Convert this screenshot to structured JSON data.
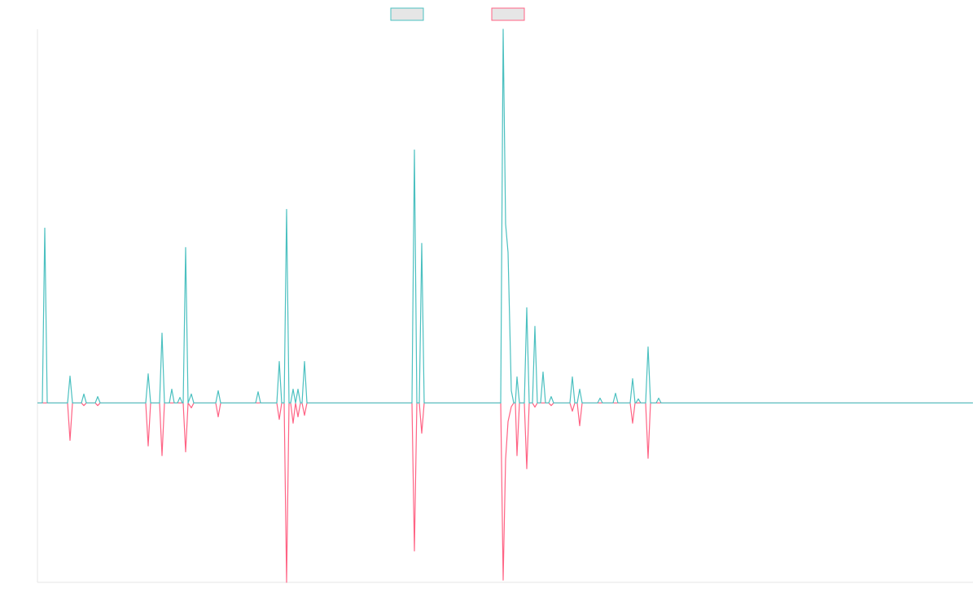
{
  "chart_data": {
    "type": "line",
    "x": [
      0,
      6,
      9,
      12,
      37,
      40,
      43,
      54,
      57,
      60,
      71,
      74,
      77,
      133,
      136,
      139,
      150,
      153,
      156,
      162,
      165,
      168,
      172,
      175,
      178,
      179,
      182,
      185,
      189,
      192,
      219,
      222,
      225,
      268,
      271,
      274,
      294,
      297,
      300,
      303,
      306,
      309,
      311,
      314,
      317,
      320,
      323,
      325,
      328,
      331,
      460,
      463,
      466,
      469,
      472,
      475,
      569,
      572,
      575,
      578,
      582,
      585,
      587,
      589,
      592,
      598,
      601,
      604,
      608,
      611,
      614,
      618,
      621,
      624,
      628,
      631,
      634,
      654,
      657,
      660,
      663,
      666,
      669,
      688,
      691,
      694,
      707,
      710,
      713,
      728,
      731,
      734,
      735,
      738,
      741,
      747,
      750,
      753,
      760,
      763,
      766,
      1149
    ],
    "xlim": [
      0,
      1149
    ],
    "ylim": [
      -0.48,
      1
    ],
    "series": [
      {
        "color": "#4bc0c0",
        "values": [
          0,
          0,
          0.468,
          0,
          0,
          0.072,
          0,
          0,
          0.024,
          0,
          0,
          0.017,
          0,
          0,
          0.078,
          0,
          0,
          0.187,
          0,
          0,
          0.037,
          0,
          0,
          0.015,
          0,
          0,
          0.416,
          0,
          0.024,
          0,
          0,
          0.033,
          0,
          0,
          0.03,
          0,
          0,
          0.111,
          0,
          0,
          0.518,
          0,
          0,
          0.037,
          0,
          0.037,
          0,
          0,
          0.111,
          0,
          0,
          0.677,
          0,
          0,
          0.427,
          0,
          0,
          1,
          0.479,
          0.403,
          0.033,
          0,
          0,
          0.07,
          0,
          0,
          0.255,
          0,
          0,
          0.205,
          0,
          0,
          0.083,
          0,
          0,
          0.017,
          0,
          0,
          0.07,
          0,
          0,
          0.037,
          0,
          0,
          0.013,
          0,
          0,
          0.026,
          0,
          0,
          0.065,
          0,
          0,
          0.011,
          0,
          0,
          0.15,
          0,
          0,
          0.013,
          0,
          0
        ]
      },
      {
        "color": "#ff6384",
        "values": [
          0,
          0,
          0,
          0,
          0,
          -0.1,
          0,
          0,
          -0.007,
          0,
          0,
          -0.007,
          0,
          0,
          -0.115,
          0,
          0,
          -0.141,
          0,
          0,
          0,
          0,
          0,
          0,
          0,
          0,
          -0.131,
          0,
          -0.013,
          0,
          0,
          -0.037,
          0,
          0,
          0,
          0,
          0,
          -0.044,
          0,
          0,
          -0.48,
          0,
          0,
          -0.054,
          0,
          -0.037,
          0,
          0,
          -0.033,
          0,
          0,
          -0.396,
          0,
          0,
          -0.081,
          0,
          0,
          -0.474,
          -0.15,
          -0.05,
          -0.01,
          0,
          0,
          -0.141,
          0,
          0,
          -0.176,
          0,
          0,
          -0.011,
          0,
          0,
          0,
          0,
          0,
          -0.007,
          0,
          0,
          -0.022,
          0,
          0,
          -0.061,
          0,
          0,
          0,
          0,
          0,
          0,
          0,
          0,
          -0.054,
          0,
          0,
          0,
          0,
          0,
          -0.148,
          0,
          0,
          0,
          0,
          0
        ]
      }
    ]
  }
}
